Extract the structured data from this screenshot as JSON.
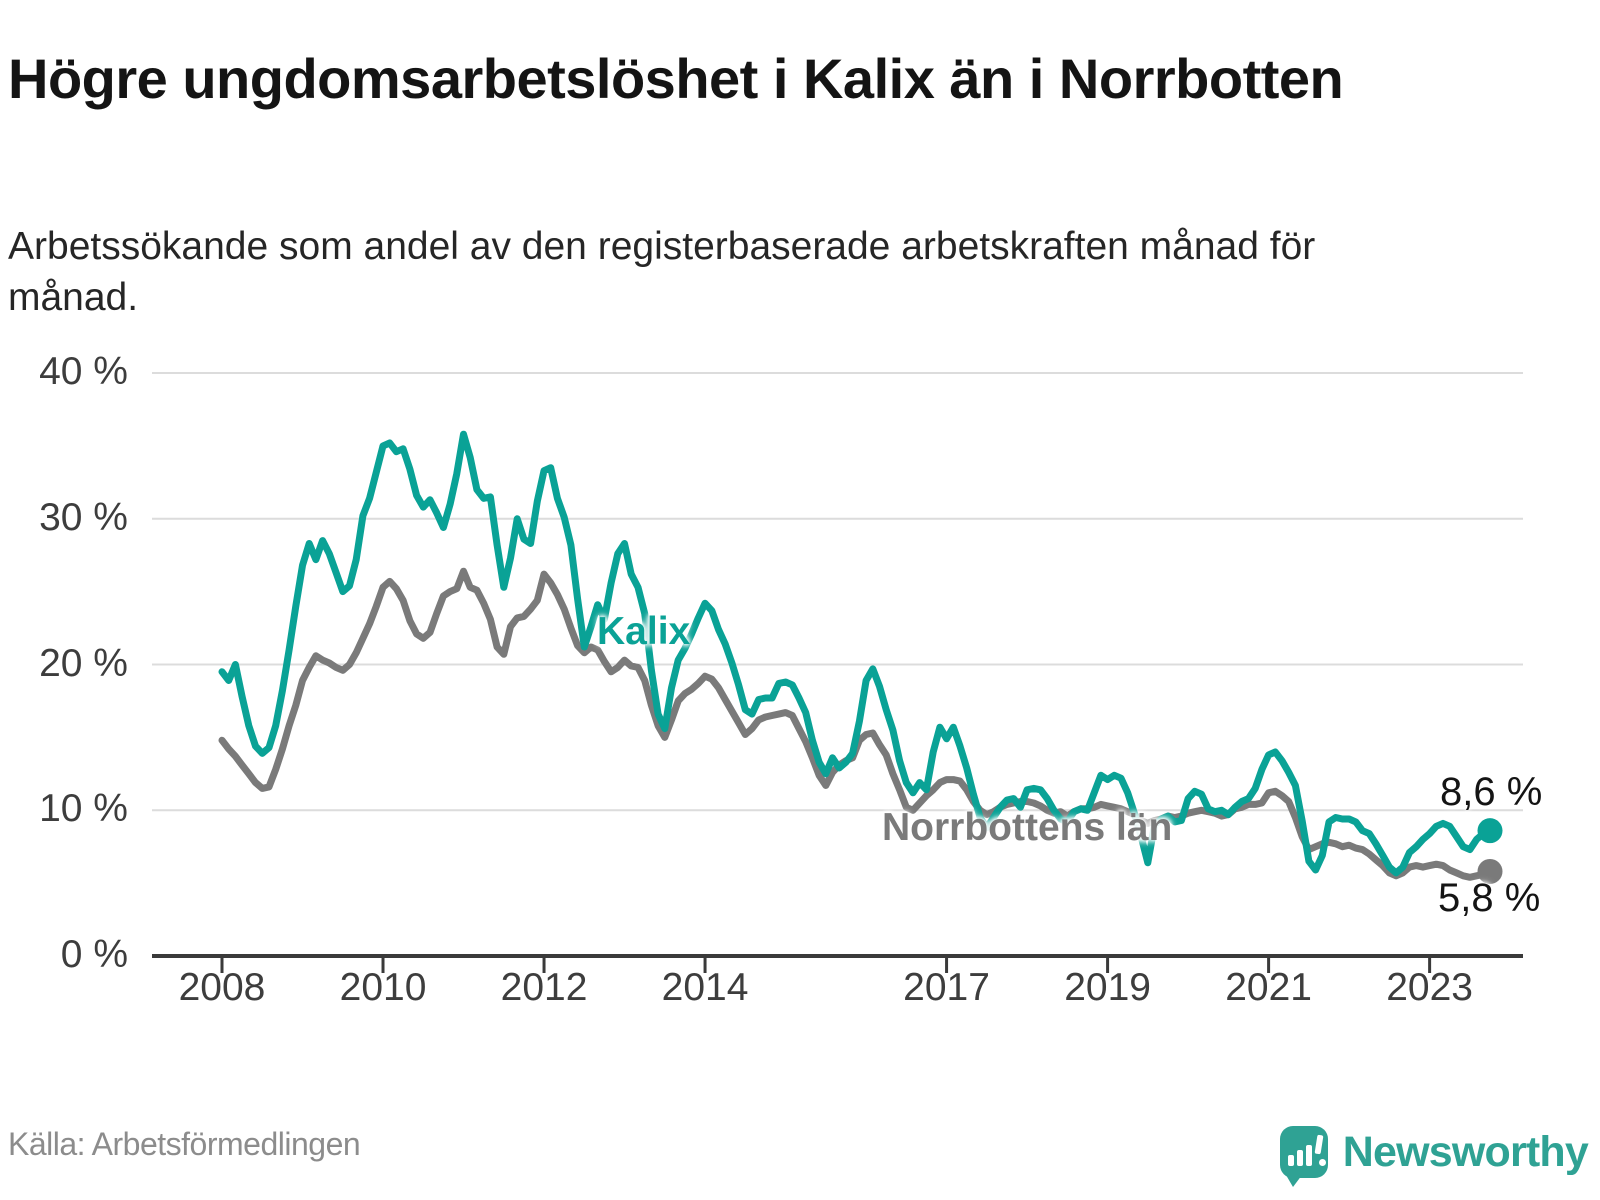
{
  "header": {
    "title": "Högre ungdomsarbetslöshet i Kalix än i Norrbotten",
    "subtitle": "Arbetssökande som andel av den registerbaserade arbetskraften månad för månad."
  },
  "footer": {
    "source": "Källa: Arbetsförmedlingen",
    "brand": "Newsworthy"
  },
  "colors": {
    "kalix_teal": "#0aa296",
    "norrbotten_gray": "#7a7a7a",
    "brand_teal": "#2fa294",
    "gridline": "#dcdcdc",
    "axis": "#3a3a3a",
    "tick_text": "#3d3d3d"
  },
  "chart_data": {
    "type": "line",
    "title": "Högre ungdomsarbetslöshet i Kalix än i Norrbotten",
    "subtitle": "Arbetssökande som andel av den registerbaserade arbetskraften månad för månad.",
    "x_unit": "month",
    "x_start": "2008-01",
    "x_end": "2023-10",
    "ylim": [
      0,
      40
    ],
    "grid": "horizontal",
    "legend_position": "inline-labels",
    "yticks": [
      {
        "label": "0 %",
        "value": 0
      },
      {
        "label": "10 %",
        "value": 10
      },
      {
        "label": "20 %",
        "value": 20
      },
      {
        "label": "30 %",
        "value": 30
      },
      {
        "label": "40 %",
        "value": 40
      }
    ],
    "xticks": [
      {
        "label": "2008",
        "year": 2008
      },
      {
        "label": "2010",
        "year": 2010
      },
      {
        "label": "2012",
        "year": 2012
      },
      {
        "label": "2014",
        "year": 2014
      },
      {
        "label": "2017",
        "year": 2017
      },
      {
        "label": "2019",
        "year": 2019
      },
      {
        "label": "2021",
        "year": 2021
      },
      {
        "label": "2023",
        "year": 2023
      }
    ],
    "series": [
      {
        "name": "Kalix",
        "color": "#0aa296",
        "end_label": "8,6 %",
        "end_value": 8.6,
        "values": [
          19.5,
          18.9,
          20,
          17.8,
          15.8,
          14.4,
          13.9,
          14.3,
          15.8,
          18.2,
          21,
          24,
          26.8,
          28.3,
          27.2,
          28.5,
          27.6,
          26.3,
          25,
          25.4,
          27.2,
          30.2,
          31.4,
          33.2,
          35,
          35.2,
          34.6,
          34.8,
          33.4,
          31.6,
          30.8,
          31.3,
          30.4,
          29.4,
          31,
          33.1,
          35.8,
          34.2,
          32,
          31.4,
          31.5,
          28.2,
          25.3,
          27.3,
          30,
          28.6,
          28.3,
          31.2,
          33.3,
          33.5,
          31.4,
          30.1,
          28.2,
          24.5,
          21.2,
          22.6,
          24.1,
          23.1,
          25.6,
          27.6,
          28.3,
          26.2,
          25.3,
          23.5,
          19.6,
          16.6,
          15.6,
          18.4,
          20.3,
          21.1,
          22.1,
          23.2,
          24.2,
          23.7,
          22.4,
          21.4,
          20.1,
          18.6,
          16.9,
          16.6,
          17.6,
          17.7,
          17.7,
          18.7,
          18.8,
          18.6,
          17.7,
          16.7,
          14.8,
          13.3,
          12.5,
          13.6,
          12.9,
          13.3,
          13.9,
          16.1,
          18.9,
          19.7,
          18.5,
          16.9,
          15.5,
          13.4,
          11.9,
          11.2,
          11.9,
          11.4,
          14,
          15.7,
          14.9,
          15.7,
          14.4,
          12.9,
          11.1,
          9.5,
          8.8,
          9.5,
          10.2,
          10.7,
          10.8,
          10.2,
          11.4,
          11.5,
          11.4,
          10.8,
          10,
          9.4,
          9.2,
          9.9,
          10.1,
          10,
          11.2,
          12.4,
          12.1,
          12.4,
          12.2,
          11.2,
          9.8,
          8.2,
          6.4,
          9,
          9.4,
          9.6,
          9.2,
          9.3,
          10.8,
          11.3,
          11.1,
          10.1,
          9.9,
          10,
          9.7,
          10.2,
          10.6,
          10.8,
          11.5,
          12.8,
          13.8,
          14,
          13.4,
          12.6,
          11.7,
          9.3,
          6.5,
          5.9,
          6.9,
          9.2,
          9.5,
          9.4,
          9.4,
          9.2,
          8.6,
          8.4,
          7.7,
          6.9,
          6.1,
          5.7,
          6.1,
          7.1,
          7.5,
          8,
          8.4,
          8.9,
          9.1,
          8.9,
          8.2,
          7.5,
          7.3,
          8,
          8.4,
          8.6
        ]
      },
      {
        "name": "Norrbottens län",
        "color": "#7a7a7a",
        "end_label": "5,8 %",
        "end_value": 5.8,
        "values": [
          14.8,
          14.2,
          13.7,
          13.1,
          12.5,
          11.9,
          11.5,
          11.6,
          12.8,
          14.2,
          15.8,
          17.2,
          18.9,
          19.8,
          20.6,
          20.3,
          20.1,
          19.8,
          19.6,
          20,
          20.8,
          21.8,
          22.8,
          24,
          25.3,
          25.7,
          25.2,
          24.4,
          23,
          22.1,
          21.8,
          22.2,
          23.5,
          24.7,
          25,
          25.2,
          26.4,
          25.3,
          25.1,
          24.2,
          23.1,
          21.2,
          20.7,
          22.6,
          23.2,
          23.3,
          23.8,
          24.4,
          26.2,
          25.6,
          24.8,
          23.8,
          22.5,
          21.3,
          20.8,
          21.2,
          21,
          20.2,
          19.5,
          19.8,
          20.3,
          19.9,
          19.8,
          18.9,
          17.2,
          15.8,
          15,
          16.2,
          17.5,
          18,
          18.3,
          18.7,
          19.2,
          19,
          18.4,
          17.6,
          16.8,
          16,
          15.2,
          15.6,
          16.2,
          16.4,
          16.5,
          16.6,
          16.7,
          16.5,
          15.6,
          14.7,
          13.6,
          12.4,
          11.7,
          12.6,
          13.1,
          13.4,
          13.6,
          14.8,
          15.2,
          15.3,
          14.5,
          13.8,
          12.5,
          11.4,
          10.2,
          10,
          10.5,
          11,
          11.4,
          11.9,
          12.1,
          12.1,
          12,
          11.4,
          10.6,
          10,
          9.7,
          9.9,
          10.2,
          10.4,
          10.5,
          10.6,
          10.6,
          10.5,
          10.3,
          10,
          9.8,
          9.9,
          9.6,
          9.9,
          10.1,
          10.1,
          10.2,
          10.4,
          10.3,
          10.2,
          10.1,
          9.9,
          9.7,
          9.3,
          9.1,
          9.3,
          9.4,
          9.6,
          9.5,
          9.6,
          9.8,
          9.9,
          10,
          9.9,
          9.8,
          9.6,
          9.7,
          10.1,
          10.2,
          10.4,
          10.4,
          10.5,
          11.2,
          11.3,
          11,
          10.6,
          9.5,
          8.2,
          7.3,
          7.5,
          7.7,
          7.8,
          7.7,
          7.5,
          7.6,
          7.4,
          7.3,
          7,
          6.6,
          6.2,
          5.7,
          5.5,
          5.7,
          6.1,
          6.2,
          6.1,
          6.2,
          6.3,
          6.2,
          5.9,
          5.7,
          5.5,
          5.4,
          5.5,
          5.6,
          5.8
        ]
      }
    ]
  }
}
